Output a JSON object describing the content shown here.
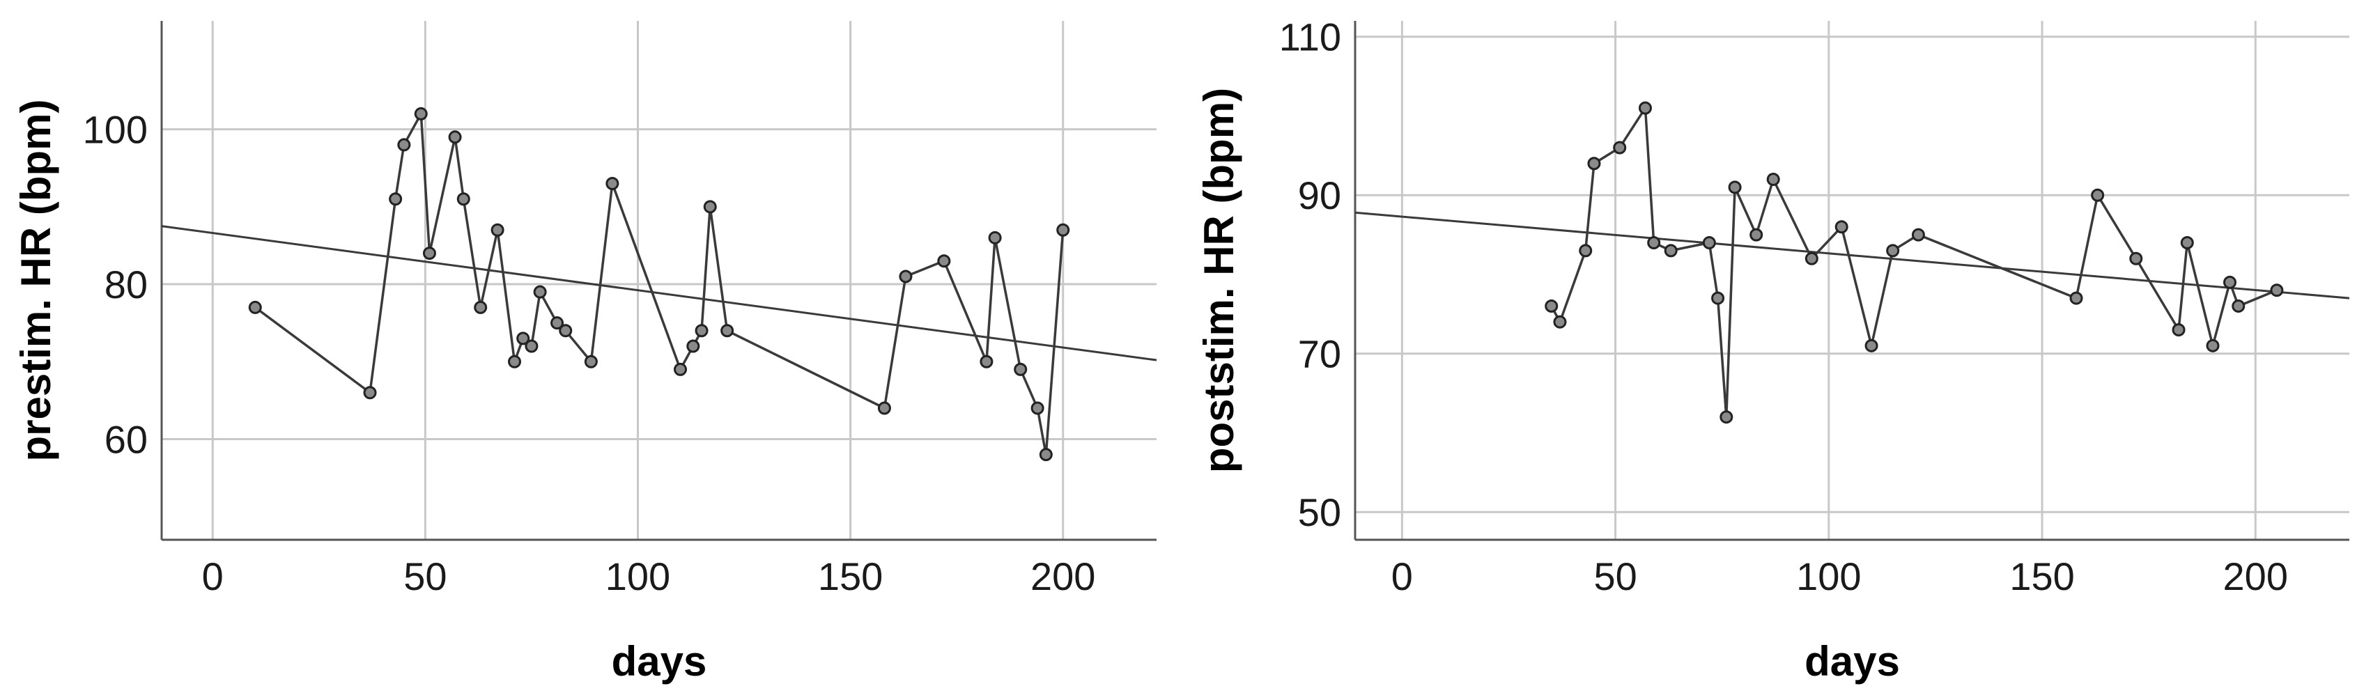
{
  "chart_data": [
    {
      "type": "line",
      "xlabel": "days",
      "ylabel": "prestim. HR (bpm)",
      "xlim": [
        -12,
        222
      ],
      "ylim": [
        47,
        114
      ],
      "x_ticks": [
        0,
        50,
        100,
        150,
        200
      ],
      "y_ticks": [
        60,
        80,
        100
      ],
      "grid": true,
      "series": [
        {
          "x": [
            10,
            37,
            43,
            45,
            49,
            51,
            57,
            59,
            63,
            67,
            71,
            73,
            75,
            77,
            81,
            83,
            89,
            94,
            110,
            113,
            115,
            117,
            121,
            158,
            163,
            172,
            182,
            184,
            190,
            194,
            196,
            200
          ],
          "y": [
            77,
            66,
            91,
            98,
            102,
            84,
            99,
            91,
            77,
            87,
            70,
            73,
            72,
            79,
            75,
            74,
            70,
            93,
            69,
            72,
            74,
            90,
            74,
            64,
            81,
            83,
            70,
            86,
            69,
            64,
            58,
            87
          ]
        }
      ],
      "fit_line": {
        "x": [
          -12,
          222
        ],
        "y": [
          87.5,
          70.2
        ]
      }
    },
    {
      "type": "line",
      "xlabel": "days",
      "ylabel": "poststim. HR (bpm)",
      "xlim": [
        -11,
        222
      ],
      "ylim": [
        46.5,
        112
      ],
      "x_ticks": [
        0,
        50,
        100,
        150,
        200
      ],
      "y_ticks": [
        50,
        70,
        90,
        110
      ],
      "grid": true,
      "series": [
        {
          "x": [
            35,
            37,
            43,
            45,
            51,
            57,
            59,
            63,
            72,
            74,
            76,
            78,
            83,
            87,
            96,
            103,
            110,
            115,
            121,
            158,
            163,
            172,
            182,
            184,
            190,
            194,
            196,
            205
          ],
          "y": [
            76,
            74,
            83,
            94,
            96,
            101,
            84,
            83,
            84,
            77,
            62,
            91,
            85,
            92,
            82,
            86,
            71,
            83,
            85,
            77,
            90,
            82,
            73,
            84,
            71,
            79,
            76,
            78
          ]
        }
      ],
      "fit_line": {
        "x": [
          -11,
          222
        ],
        "y": [
          87.8,
          77.0
        ]
      }
    }
  ]
}
